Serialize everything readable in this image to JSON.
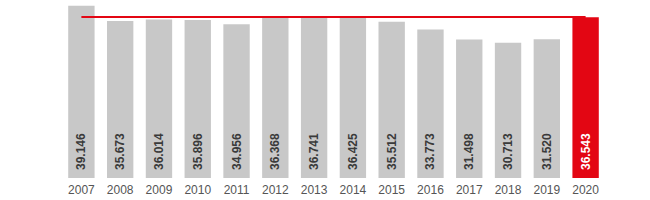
{
  "chart_data": {
    "type": "bar",
    "categories": [
      "2007",
      "2008",
      "2009",
      "2010",
      "2011",
      "2012",
      "2013",
      "2014",
      "2015",
      "2016",
      "2017",
      "2018",
      "2019",
      "2020"
    ],
    "values": [
      39.146,
      35.673,
      36.014,
      35.896,
      34.956,
      36.368,
      36.741,
      36.425,
      35.512,
      33.773,
      31.498,
      30.713,
      31.52,
      36.543
    ],
    "value_labels": [
      "39.146",
      "35.673",
      "36.014",
      "35.896",
      "34.956",
      "36.368",
      "36.741",
      "36.425",
      "35.512",
      "33.773",
      "31.498",
      "30.713",
      "31.520",
      "36.543"
    ],
    "colors": [
      "#c8c8c8",
      "#c8c8c8",
      "#c8c8c8",
      "#c8c8c8",
      "#c8c8c8",
      "#c8c8c8",
      "#c8c8c8",
      "#c8c8c8",
      "#c8c8c8",
      "#c8c8c8",
      "#c8c8c8",
      "#c8c8c8",
      "#c8c8c8",
      "#e30613"
    ],
    "ylim": [
      0,
      40
    ],
    "yticks": [
      0,
      40
    ],
    "grid": false,
    "data_labels": true,
    "tick_labels": "x"
  }
}
